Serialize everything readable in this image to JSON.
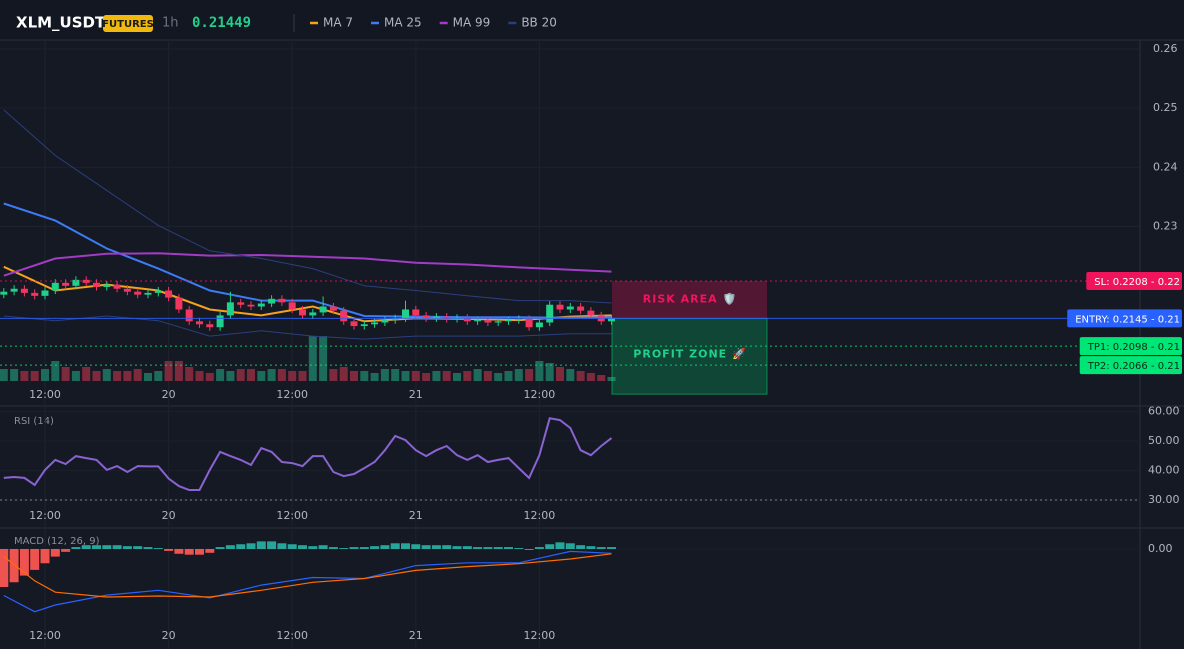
{
  "chart_data": [
    {
      "type": "candlestick",
      "title": "XLM_USDT",
      "badge": "FUTURES",
      "interval": "1h",
      "last_price": 0.21449,
      "categories": [
        null,
        null,
        null,
        null,
        "12:00",
        null,
        null,
        null,
        null,
        null,
        null,
        null,
        null,
        null,
        null,
        null,
        "20",
        null,
        null,
        null,
        null,
        null,
        null,
        null,
        null,
        null,
        null,
        null,
        "12:00",
        null,
        null,
        null,
        null,
        null,
        null,
        null,
        null,
        null,
        null,
        null,
        "21",
        null,
        null,
        null,
        null,
        null,
        null,
        null,
        null,
        null,
        null,
        null,
        "12:00",
        null,
        null,
        null,
        null,
        null,
        null,
        null
      ],
      "open": [
        0.2185,
        0.219,
        0.2195,
        0.2188,
        0.2183,
        0.2192,
        0.2205,
        0.22,
        0.221,
        0.2205,
        0.2198,
        0.2202,
        0.2195,
        0.219,
        0.2185,
        0.2188,
        0.2192,
        0.218,
        0.216,
        0.214,
        0.2135,
        0.213,
        0.215,
        0.2172,
        0.2168,
        0.2165,
        0.217,
        0.2178,
        0.2172,
        0.216,
        0.215,
        0.2155,
        0.2165,
        0.2158,
        0.214,
        0.2132,
        0.2135,
        0.2138,
        0.2142,
        0.2145,
        0.216,
        0.215,
        0.2145,
        0.2148,
        0.2144,
        0.2146,
        0.214,
        0.2142,
        0.2138,
        0.214,
        0.2142,
        0.2144,
        0.213,
        0.2138,
        0.2168,
        0.216,
        0.2165,
        0.2158,
        0.215,
        0.214
      ],
      "high": [
        0.2196,
        0.2201,
        0.2201,
        0.2194,
        0.2198,
        0.2211,
        0.2211,
        0.2216,
        0.2216,
        0.2211,
        0.2208,
        0.2208,
        0.2201,
        0.2196,
        0.2194,
        0.2198,
        0.2198,
        0.2186,
        0.2166,
        0.2146,
        0.2141,
        0.2156,
        0.219,
        0.2178,
        0.2174,
        0.2176,
        0.2184,
        0.2184,
        0.2178,
        0.2166,
        0.2161,
        0.2182,
        0.2171,
        0.2164,
        0.2146,
        0.2141,
        0.2144,
        0.2148,
        0.2151,
        0.2175,
        0.2166,
        0.2156,
        0.2154,
        0.2154,
        0.2152,
        0.2152,
        0.2148,
        0.2148,
        0.2146,
        0.2148,
        0.215,
        0.215,
        0.2144,
        0.2174,
        0.2174,
        0.2171,
        0.2171,
        0.2164,
        0.2156,
        0.2151
      ],
      "low": [
        0.2179,
        0.2184,
        0.2182,
        0.2177,
        0.2177,
        0.2186,
        0.2194,
        0.2194,
        0.2199,
        0.2192,
        0.2192,
        0.2189,
        0.2184,
        0.2179,
        0.2179,
        0.2182,
        0.2174,
        0.2154,
        0.2134,
        0.2129,
        0.2124,
        0.2124,
        0.2144,
        0.2162,
        0.2159,
        0.2159,
        0.2164,
        0.2166,
        0.2154,
        0.2144,
        0.2144,
        0.2149,
        0.2152,
        0.2134,
        0.2126,
        0.2126,
        0.2129,
        0.2132,
        0.2136,
        0.2139,
        0.2144,
        0.2139,
        0.2139,
        0.2138,
        0.2138,
        0.2134,
        0.2134,
        0.2132,
        0.2132,
        0.2134,
        0.2136,
        0.2124,
        0.2124,
        0.2132,
        0.2154,
        0.2154,
        0.2152,
        0.2144,
        0.2134,
        0.2134
      ],
      "close": [
        0.219,
        0.2195,
        0.2188,
        0.2183,
        0.2192,
        0.2205,
        0.22,
        0.221,
        0.2205,
        0.2198,
        0.2202,
        0.2195,
        0.219,
        0.2185,
        0.2188,
        0.2192,
        0.218,
        0.216,
        0.214,
        0.2135,
        0.213,
        0.215,
        0.2172,
        0.2168,
        0.2165,
        0.217,
        0.2178,
        0.2172,
        0.216,
        0.215,
        0.2155,
        0.2165,
        0.2158,
        0.214,
        0.2132,
        0.2135,
        0.2138,
        0.2142,
        0.2145,
        0.216,
        0.215,
        0.2145,
        0.2148,
        0.2144,
        0.2146,
        0.214,
        0.2142,
        0.2138,
        0.214,
        0.2142,
        0.2144,
        0.213,
        0.2138,
        0.2168,
        0.216,
        0.2165,
        0.2158,
        0.215,
        0.214,
        0.2145
      ],
      "volume": [
        12,
        12,
        10,
        10,
        12,
        20,
        14,
        10,
        14,
        10,
        12,
        10,
        10,
        12,
        8,
        10,
        20,
        20,
        14,
        10,
        8,
        12,
        10,
        12,
        12,
        10,
        12,
        12,
        10,
        10,
        45,
        45,
        12,
        14,
        10,
        10,
        8,
        12,
        12,
        10,
        10,
        8,
        10,
        10,
        8,
        10,
        12,
        10,
        8,
        10,
        12,
        12,
        20,
        18,
        14,
        12,
        10,
        8,
        6,
        4
      ],
      "volume_lim": [
        0,
        100
      ],
      "up_color": "#1fd18a",
      "down_color": "#f23660",
      "volume_up_color": "#1d6b5b",
      "volume_down_color": "#7d2a3d",
      "indicators": [
        {
          "name": "MA 7",
          "color": "#f7a21b",
          "x": [
            0,
            5,
            10,
            15,
            20,
            25,
            30,
            35,
            40,
            45,
            50,
            55,
            59
          ],
          "values": [
            0.2232,
            0.2192,
            0.2202,
            0.2192,
            0.216,
            0.215,
            0.2165,
            0.214,
            0.2145,
            0.2144,
            0.2142,
            0.2148,
            0.215
          ]
        },
        {
          "name": "MA 25",
          "color": "#3d7bf5",
          "x": [
            0,
            5,
            10,
            15,
            20,
            25,
            30,
            35,
            40,
            45,
            50,
            55,
            59
          ],
          "values": [
            0.2339,
            0.231,
            0.2263,
            0.2229,
            0.2192,
            0.2175,
            0.2175,
            0.2149,
            0.2148,
            0.2147,
            0.2147,
            0.2146,
            0.2147
          ]
        },
        {
          "name": "MA 99",
          "color": "#a23cc4",
          "x": [
            0,
            5,
            10,
            15,
            20,
            25,
            30,
            35,
            40,
            45,
            50,
            55,
            59
          ],
          "values": [
            0.2217,
            0.2246,
            0.2254,
            0.2255,
            0.2251,
            0.2252,
            0.2249,
            0.2246,
            0.2239,
            0.2236,
            0.2231,
            0.2227,
            0.2224
          ]
        },
        {
          "name": "BB 20",
          "color": "#2b3f7e",
          "x": [
            0,
            5,
            10,
            15,
            20,
            25,
            30,
            35,
            40,
            45,
            50,
            55,
            59
          ],
          "upper": [
            0.2497,
            0.242,
            0.2361,
            0.2302,
            0.2259,
            0.2246,
            0.2229,
            0.22,
            0.2192,
            0.2183,
            0.2175,
            0.2175,
            0.2171
          ],
          "lower": [
            0.2149,
            0.2141,
            0.2149,
            0.2141,
            0.2115,
            0.2124,
            0.2115,
            0.211,
            0.2115,
            0.2115,
            0.2115,
            0.2119,
            0.2119
          ]
        }
      ],
      "levels": [
        {
          "label": "SL: 0.2208 - 0.22",
          "value": 0.2208,
          "color": "#f0155a",
          "text_color": "#ffffff",
          "style": "dotted"
        },
        {
          "label": "ENTRY: 0.2145 - 0.21",
          "value": 0.2145,
          "color": "#2962ff",
          "text_color": "#ffffff",
          "style": "solid"
        },
        {
          "label": "TP1: 0.2098 - 0.21",
          "value": 0.2098,
          "color": "#00e676",
          "text_color": "#0b2a18",
          "style": "dotted"
        },
        {
          "label": "TP2: 0.2066 - 0.21",
          "value": 0.2066,
          "color": "#00e676",
          "text_color": "#0b2a18",
          "style": "dotted"
        }
      ],
      "risk_area": {
        "label": "RISK AREA 🛡️"
      },
      "profit_zone": {
        "label": "PROFIT ZONE 🚀",
        "bottom": 0.2017
      },
      "ylim": [
        0.1997,
        0.2615
      ],
      "yticks": [
        0.23,
        0.24,
        0.25,
        0.26
      ],
      "grid": true
    },
    {
      "type": "line",
      "title": "RSI (14)",
      "color": "#8a63d2",
      "values": [
        37.5,
        37.8,
        37.5,
        35.1,
        40.2,
        43.6,
        42.2,
        44.9,
        44.2,
        43.6,
        40.2,
        41.5,
        39.5,
        41.5,
        41.4,
        41.4,
        37.3,
        34.7,
        33.4,
        33.4,
        40.2,
        46.3,
        44.9,
        43.6,
        41.9,
        47.6,
        46.3,
        42.9,
        42.5,
        41.5,
        44.9,
        44.9,
        39.5,
        38.1,
        38.8,
        40.8,
        42.9,
        46.9,
        51.7,
        50.3,
        46.9,
        44.9,
        46.9,
        48.3,
        45.2,
        43.6,
        45.2,
        42.9,
        43.6,
        44.2,
        40.8,
        37.5,
        45.2,
        57.7,
        57.1,
        54.4,
        46.9,
        45.2,
        48.3,
        51
      ],
      "ylim": [
        20.5,
        61.2
      ],
      "yticks": [
        {
          "value": 30,
          "label": "30.00"
        },
        {
          "value": 40,
          "label": "40.00"
        },
        {
          "value": 50,
          "label": "50.00"
        },
        {
          "value": 60,
          "label": "60.00"
        }
      ],
      "reference_lines": [
        30
      ]
    },
    {
      "type": "macd",
      "title": "MACD (12, 26, 9)",
      "histogram": [
        -0.0008,
        -0.0007,
        -0.00056,
        -0.00044,
        -0.0003,
        -0.00016,
        -6e-05,
        4e-05,
        8e-05,
        8e-05,
        8e-05,
        8e-05,
        6e-05,
        6e-05,
        4e-05,
        2e-05,
        -4e-05,
        -0.0001,
        -0.00012,
        -0.00012,
        -8e-05,
        4e-05,
        8e-05,
        0.0001,
        0.00012,
        0.00016,
        0.00016,
        0.00012,
        0.0001,
        8e-05,
        6e-05,
        8e-05,
        4e-05,
        2e-05,
        4e-05,
        4e-05,
        6e-05,
        8e-05,
        0.00012,
        0.00012,
        0.0001,
        8e-05,
        8e-05,
        8e-05,
        6e-05,
        6e-05,
        4e-05,
        4e-05,
        4e-05,
        4e-05,
        2e-05,
        -2e-05,
        4e-05,
        0.0001,
        0.00014,
        0.00012,
        8e-05,
        6e-05,
        4e-05,
        4e-05
      ],
      "up_color": "#26a69a",
      "down_color": "#ef5350",
      "series": [
        {
          "color": "#2962ff",
          "x": [
            0,
            3,
            5,
            10,
            15,
            20,
            25,
            30,
            35,
            40,
            45,
            50,
            55,
            59
          ],
          "values": [
            -0.00098,
            -0.00132,
            -0.00118,
            -0.00097,
            -0.00087,
            -0.00103,
            -0.00076,
            -0.0006,
            -0.00062,
            -0.00035,
            -0.00029,
            -0.00029,
            -5e-05,
            -9e-05
          ]
        },
        {
          "color": "#ff6d00",
          "x": [
            0,
            3,
            5,
            10,
            15,
            20,
            25,
            30,
            35,
            40,
            45,
            50,
            55,
            59
          ],
          "values": [
            -0.00016,
            -0.00067,
            -0.00091,
            -0.00101,
            -0.00099,
            -0.00101,
            -0.00087,
            -0.0007,
            -0.00062,
            -0.00045,
            -0.00037,
            -0.00031,
            -0.00021,
            -0.0001
          ]
        }
      ],
      "ylim": [
        -0.0016,
        0.0004
      ],
      "yticks": [
        {
          "value": 0,
          "label": "0.00"
        }
      ]
    }
  ]
}
